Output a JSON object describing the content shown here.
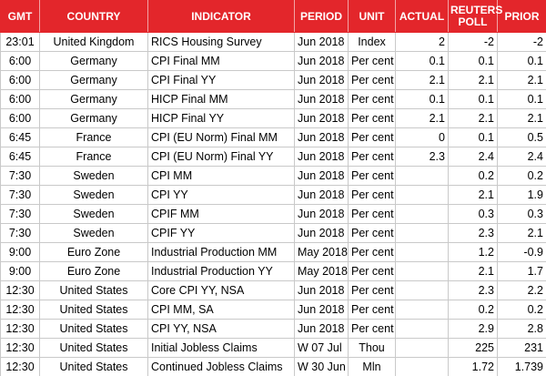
{
  "table": {
    "columns": [
      "GMT",
      "COUNTRY",
      "INDICATOR",
      "PERIOD",
      "UNIT",
      "ACTUAL",
      "REUTERS POLL",
      "PRIOR"
    ],
    "rows": [
      [
        "23:01",
        "United Kingdom",
        "RICS Housing Survey",
        "Jun 2018",
        "Index",
        2,
        -2,
        -2
      ],
      [
        "6:00",
        "Germany",
        "CPI Final MM",
        "Jun 2018",
        "Per cent",
        0.1,
        0.1,
        0.1
      ],
      [
        "6:00",
        "Germany",
        "CPI Final YY",
        "Jun 2018",
        "Per cent",
        2.1,
        2.1,
        2.1
      ],
      [
        "6:00",
        "Germany",
        "HICP Final MM",
        "Jun 2018",
        "Per cent",
        0.1,
        0.1,
        0.1
      ],
      [
        "6:00",
        "Germany",
        "HICP Final YY",
        "Jun 2018",
        "Per cent",
        2.1,
        2.1,
        2.1
      ],
      [
        "6:45",
        "France",
        "CPI (EU Norm) Final MM",
        "Jun 2018",
        "Per cent",
        0,
        0.1,
        0.5
      ],
      [
        "6:45",
        "France",
        "CPI (EU Norm) Final YY",
        "Jun 2018",
        "Per cent",
        2.3,
        2.4,
        2.4
      ],
      [
        "7:30",
        "Sweden",
        "CPI MM",
        "Jun 2018",
        "Per cent",
        null,
        0.2,
        0.2
      ],
      [
        "7:30",
        "Sweden",
        "CPI YY",
        "Jun 2018",
        "Per cent",
        null,
        2.1,
        1.9
      ],
      [
        "7:30",
        "Sweden",
        "CPIF MM",
        "Jun 2018",
        "Per cent",
        null,
        0.3,
        0.3
      ],
      [
        "7:30",
        "Sweden",
        "CPIF YY",
        "Jun 2018",
        "Per cent",
        null,
        2.3,
        2.1
      ],
      [
        "9:00",
        "Euro Zone",
        "Industrial Production MM",
        "May 2018",
        "Per cent",
        null,
        1.2,
        -0.9
      ],
      [
        "9:00",
        "Euro Zone",
        "Industrial Production YY",
        "May 2018",
        "Per cent",
        null,
        2.1,
        1.7
      ],
      [
        "12:30",
        "United States",
        "Core CPI YY, NSA",
        "Jun 2018",
        "Per cent",
        null,
        2.3,
        2.2
      ],
      [
        "12:30",
        "United States",
        "CPI MM, SA",
        "Jun 2018",
        "Per cent",
        null,
        0.2,
        0.2
      ],
      [
        "12:30",
        "United States",
        "CPI YY, NSA",
        "Jun 2018",
        "Per cent",
        null,
        2.9,
        2.8
      ],
      [
        "12:30",
        "United States",
        "Initial Jobless Claims",
        "W 07 Jul",
        "Thou",
        null,
        225,
        231
      ],
      [
        "12:30",
        "United States",
        "Continued Jobless Claims",
        "W 30 Jun",
        "Mln",
        null,
        1.72,
        1.739
      ]
    ]
  }
}
